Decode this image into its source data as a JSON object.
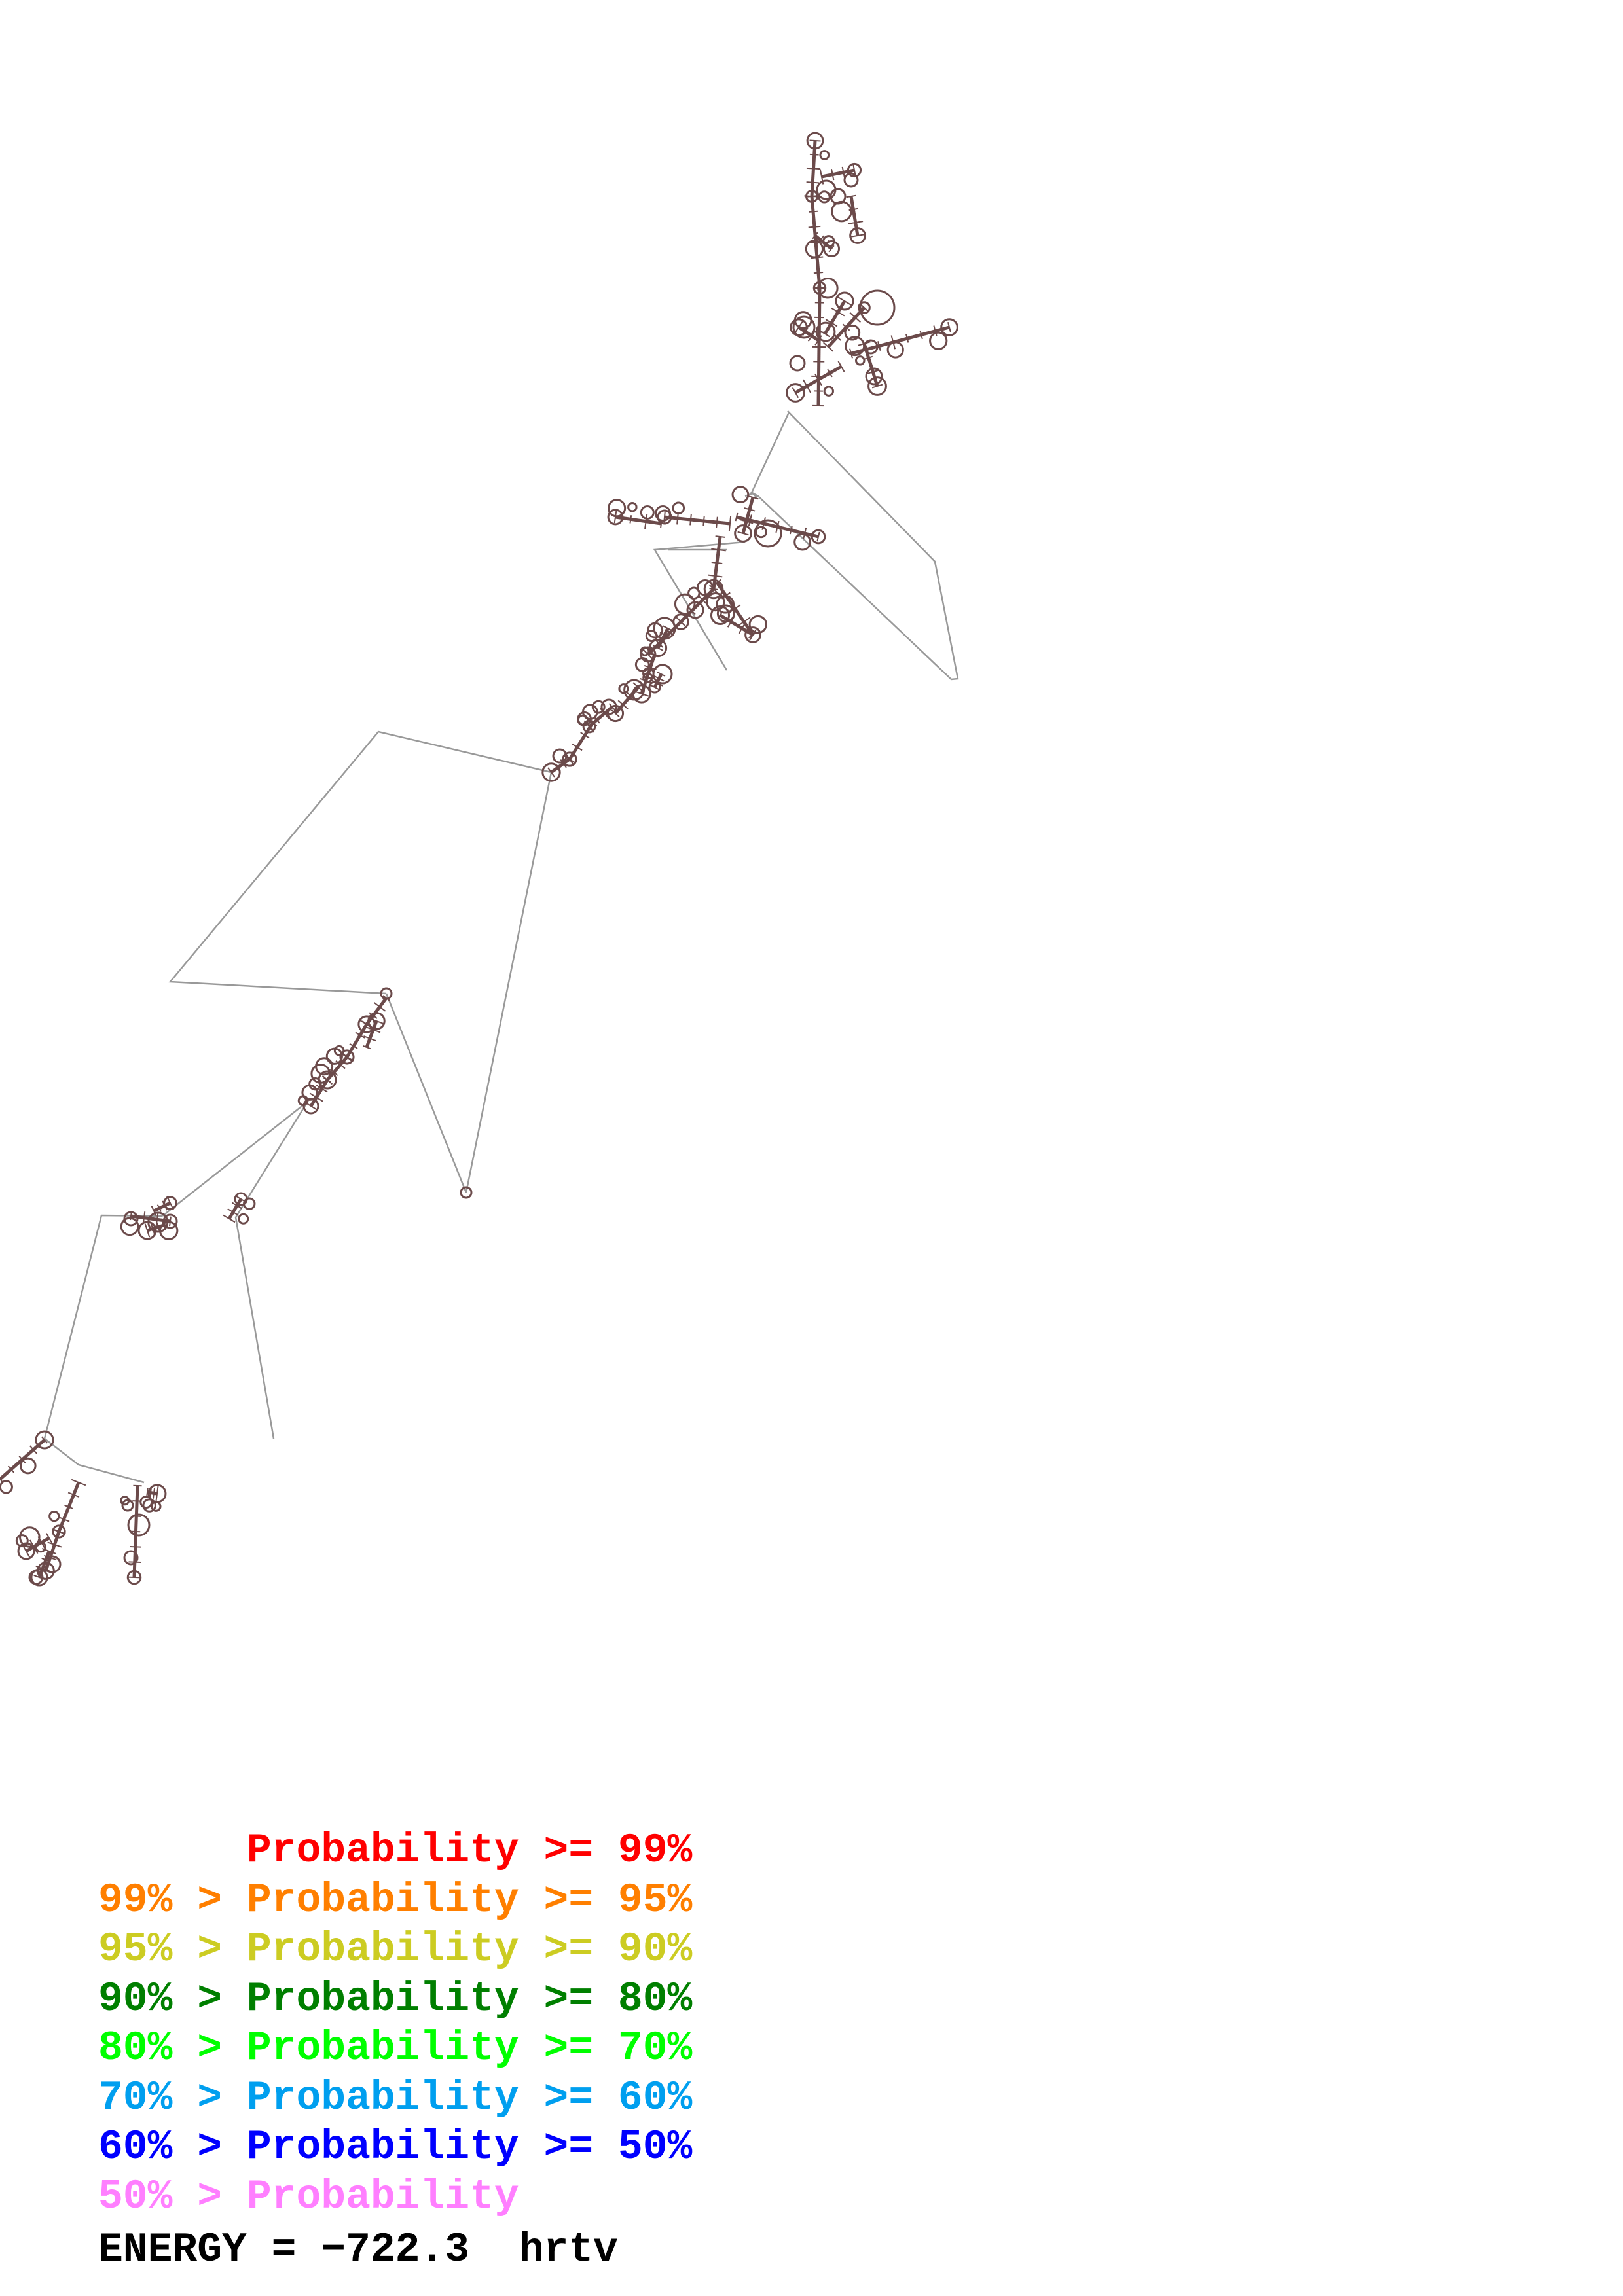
{
  "legend": {
    "rows": [
      {
        "prefix": "       ",
        "text": "Probability >= 99%",
        "color": "#ff0000"
      },
      {
        "prefix": "99% > ",
        "text": "Probability >= 95%",
        "color": "#ff7f00"
      },
      {
        "prefix": "95% > ",
        "text": "Probability >= 90%",
        "color": "#cccc22"
      },
      {
        "prefix": "90% > ",
        "text": "Probability >= 80%",
        "color": "#007f00"
      },
      {
        "prefix": "80% > ",
        "text": "Probability >= 70%",
        "color": "#00ff00"
      },
      {
        "prefix": "70% > ",
        "text": "Probability >= 60%",
        "color": "#009fef"
      },
      {
        "prefix": "60% > ",
        "text": "Probability >= 50%",
        "color": "#0000ff"
      },
      {
        "prefix": "50% > ",
        "text": "Probability",
        "color": "#ff7fff"
      }
    ]
  },
  "energy": {
    "label": "ENERGY = ",
    "value": "−722.3",
    "name": "hrtv"
  },
  "colors": {
    "backbone": "#888888",
    "structure": "#6b4a4a"
  }
}
